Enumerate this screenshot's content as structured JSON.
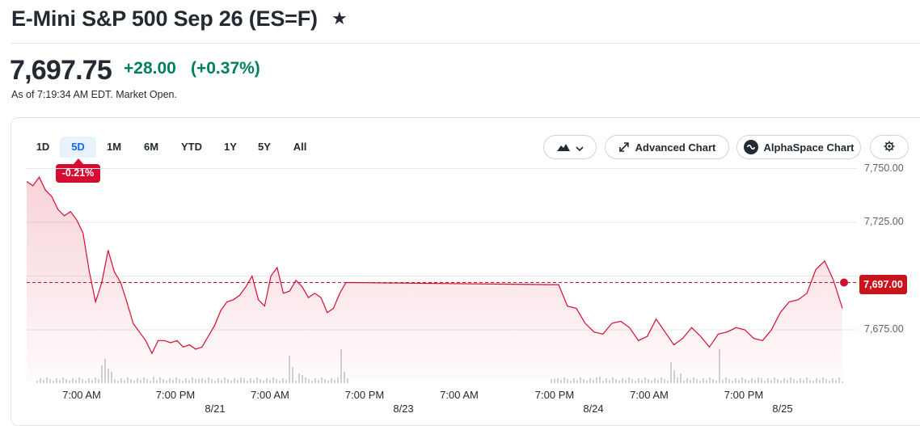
{
  "header": {
    "title": "E-Mini S&P 500 Sep 26 (ES=F)",
    "price": "7,697.75",
    "change": "+28.00",
    "change_pct": "(+0.37%)",
    "as_of": "As of 7:19:34 AM EDT. Market Open."
  },
  "ranges": [
    "1D",
    "5D",
    "1M",
    "6M",
    "YTD",
    "1Y",
    "5Y",
    "All"
  ],
  "active_range": "5D",
  "period_change_badge": "-0.21%",
  "toolbar": {
    "advanced_chart": "Advanced Chart",
    "alphaspace_chart": "AlphaSpace Chart"
  },
  "current_price_tag": "7,697.00",
  "colors": {
    "up": "#008060",
    "down": "#d50b2f",
    "line": "#d50b2f",
    "active_tab": "#0f69ff"
  },
  "chart_data": {
    "type": "area",
    "ylim": [
      7660,
      7752
    ],
    "y_ticks": [
      "7,750.00",
      "7,725.00",
      "7,675.00"
    ],
    "y_tick_values": [
      7750,
      7725,
      7675
    ],
    "x_tick_labels": [
      "7:00 AM",
      "7:00 PM",
      "7:00 AM",
      "7:00 PM",
      "7:00 AM",
      "7:00 PM",
      "7:00 AM",
      "7:00 PM"
    ],
    "date_labels": [
      "8/21",
      "8/23",
      "8/24",
      "8/25"
    ],
    "previous_close": 7697,
    "current": 7697,
    "grid": true,
    "series": [
      {
        "values": [
          7744,
          7742,
          7746,
          7740,
          7737,
          7731,
          7728,
          7730,
          7726,
          7720,
          7702,
          7688,
          7697,
          7712,
          7702,
          7697,
          7688,
          7678,
          7674,
          7670,
          7664,
          7670,
          7670,
          7669,
          7670,
          7667,
          7668,
          7666,
          7667,
          7672,
          7677,
          7684,
          7688,
          7689,
          7691,
          7695,
          7700,
          7689,
          7686,
          7700,
          7704,
          7692,
          7693,
          7698,
          7695,
          7690,
          7692,
          7690,
          7683,
          7685,
          7692,
          7697,
          7696,
          7696,
          7686,
          7685,
          7678,
          7674,
          7673,
          7678,
          7679,
          7676,
          7670,
          7672,
          7680,
          7674,
          7668,
          7671,
          7676,
          7672,
          7667,
          7673,
          7674,
          7676,
          7675,
          7671,
          7670,
          7675,
          7683,
          7688,
          7689,
          7692,
          7703,
          7707,
          7698,
          7685
        ]
      }
    ]
  }
}
